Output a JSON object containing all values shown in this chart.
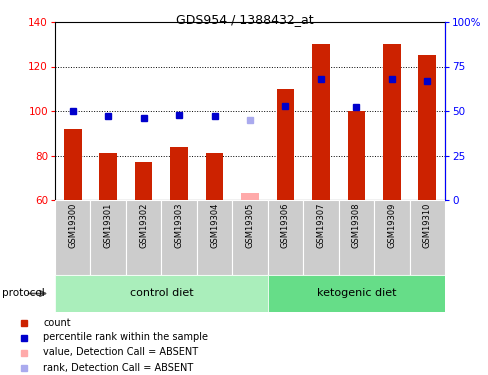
{
  "title": "GDS954 / 1388432_at",
  "samples": [
    "GSM19300",
    "GSM19301",
    "GSM19302",
    "GSM19303",
    "GSM19304",
    "GSM19305",
    "GSM19306",
    "GSM19307",
    "GSM19308",
    "GSM19309",
    "GSM19310"
  ],
  "counts": [
    92,
    81,
    77,
    84,
    81,
    63,
    110,
    130,
    100,
    130,
    125
  ],
  "ranks": [
    50,
    47,
    46,
    48,
    47,
    45,
    53,
    68,
    52,
    68,
    67
  ],
  "absent": [
    false,
    false,
    false,
    false,
    false,
    true,
    false,
    false,
    false,
    false,
    false
  ],
  "ylim_left": [
    60,
    140
  ],
  "ylim_right": [
    0,
    100
  ],
  "yticks_left": [
    60,
    80,
    100,
    120,
    140
  ],
  "yticks_right": [
    0,
    25,
    50,
    75,
    100
  ],
  "yticklabels_right": [
    "0",
    "25",
    "50",
    "75",
    "100%"
  ],
  "bar_color": "#cc2200",
  "bar_color_absent": "#ffaaaa",
  "rank_color": "#0000cc",
  "rank_color_absent": "#aaaaee",
  "bg_plot": "#ffffff",
  "bg_labels": "#cccccc",
  "bg_control": "#aaeebb",
  "bg_keto": "#66dd88",
  "control_label": "control diet",
  "keto_label": "ketogenic diet",
  "protocol_label": "protocol",
  "n_control": 6,
  "legend_items": [
    {
      "label": "count",
      "color": "#cc2200"
    },
    {
      "label": "percentile rank within the sample",
      "color": "#0000cc"
    },
    {
      "label": "value, Detection Call = ABSENT",
      "color": "#ffaaaa"
    },
    {
      "label": "rank, Detection Call = ABSENT",
      "color": "#aaaaee"
    }
  ]
}
